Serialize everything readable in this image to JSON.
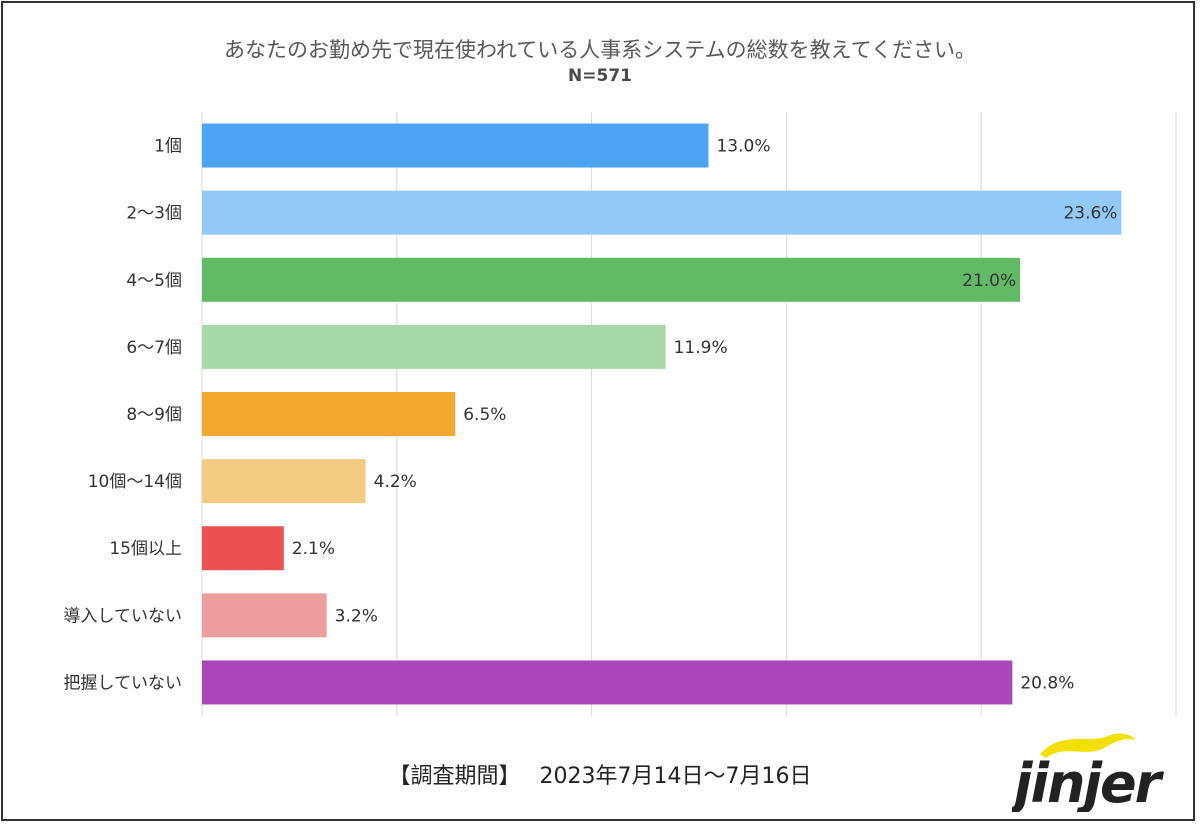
{
  "title": "あなたのお勤め先で現在使われている人事系システムの総数を教えてください。",
  "subtitle": "N=571",
  "footer": {
    "label": "【調査期間】",
    "period": "2023年7月14日～7月16日"
  },
  "logo": {
    "text": "jinjer",
    "color": "#222222",
    "accent": "#f2e000"
  },
  "chart_data": {
    "type": "bar",
    "orientation": "horizontal",
    "title": "あなたのお勤め先で現在使われている人事系システムの総数を教えてください。",
    "subtitle": "N=571",
    "categories": [
      "1個",
      "2～3個",
      "4～5個",
      "6～7個",
      "8～9個",
      "10個～14個",
      "15個以上",
      "導入していない",
      "把握していない"
    ],
    "values": [
      13.0,
      23.6,
      21.0,
      11.9,
      6.5,
      4.2,
      2.1,
      3.2,
      20.8
    ],
    "labels": [
      "13.0%",
      "23.6%",
      "21.0%",
      "11.9%",
      "6.5%",
      "4.2%",
      "2.1%",
      "3.2%",
      "20.8%"
    ],
    "colors": [
      "#4da3f5",
      "#93c9f7",
      "#62b966",
      "#a7d8a8",
      "#f2a72e",
      "#f4cb82",
      "#ec5151",
      "#ec9d9d",
      "#a947b9"
    ],
    "label_inside": [
      false,
      true,
      true,
      false,
      false,
      false,
      false,
      false,
      false
    ],
    "xlim": [
      0,
      25
    ],
    "grid": true,
    "gridlines": [
      0,
      5,
      10,
      15,
      20,
      25
    ]
  }
}
